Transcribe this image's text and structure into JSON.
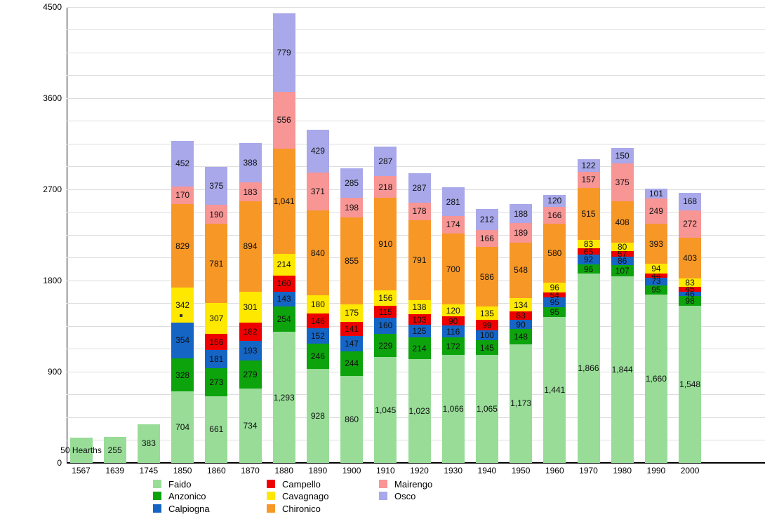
{
  "chart_data": {
    "type": "bar",
    "stacked": true,
    "title": "",
    "categories": [
      "1567",
      "1639",
      "1745",
      "1850",
      "1860",
      "1870",
      "1880",
      "1890",
      "1900",
      "1910",
      "1920",
      "1930",
      "1940",
      "1950",
      "1960",
      "1970",
      "1980",
      "1990",
      "2000"
    ],
    "series": [
      {
        "name": "Faido",
        "color": "#98DC98",
        "values": [
          250,
          255,
          383,
          704,
          661,
          734,
          1293,
          928,
          860,
          1045,
          1023,
          1066,
          1065,
          1173,
          1441,
          1866,
          1844,
          1660,
          1548
        ]
      },
      {
        "name": "Anzonico",
        "color": "#0CA30C",
        "values": [
          0,
          0,
          0,
          328,
          273,
          279,
          254,
          246,
          244,
          229,
          214,
          172,
          145,
          148,
          95,
          96,
          107,
          95,
          98
        ]
      },
      {
        "name": "Calpiogna",
        "color": "#1565C5",
        "values": [
          0,
          0,
          0,
          354,
          181,
          193,
          143,
          152,
          147,
          160,
          125,
          116,
          100,
          90,
          95,
          92,
          86,
          73,
          46
        ]
      },
      {
        "name": "Campello",
        "color": "#EE0000",
        "values": [
          0,
          0,
          0,
          0,
          156,
          182,
          160,
          146,
          141,
          115,
          103,
          90,
          99,
          83,
          54,
          65,
          57,
          44,
          45
        ]
      },
      {
        "name": "Cavagnago",
        "color": "#FFE800",
        "values": [
          0,
          0,
          0,
          342,
          307,
          301,
          214,
          180,
          175,
          156,
          138,
          120,
          135,
          134,
          96,
          83,
          80,
          94,
          83
        ]
      },
      {
        "name": "Chironico",
        "color": "#F79726",
        "values": [
          0,
          0,
          0,
          829,
          781,
          894,
          1041,
          840,
          855,
          910,
          791,
          700,
          586,
          548,
          580,
          515,
          408,
          393,
          403
        ]
      },
      {
        "name": "Mairengo",
        "color": "#F89595",
        "values": [
          0,
          0,
          0,
          170,
          190,
          183,
          556,
          371,
          198,
          218,
          178,
          174,
          166,
          189,
          166,
          157,
          375,
          249,
          272
        ]
      },
      {
        "name": "Osco",
        "color": "#A8A8EA",
        "values": [
          0,
          0,
          0,
          452,
          375,
          388,
          779,
          429,
          285,
          287,
          287,
          281,
          212,
          188,
          120,
          122,
          150,
          101,
          168
        ]
      }
    ],
    "label_overrides": [
      {
        "series": "Faido",
        "category": "1567",
        "label": "50 Hearths"
      }
    ],
    "special_markers": [
      {
        "category": "1850",
        "type": "dot",
        "stack_position": 1440,
        "description": "tiny dark square inside Cavagnago segment"
      }
    ],
    "y_axis": {
      "min": 0,
      "max": 4500,
      "major_ticks": [
        0,
        900,
        1800,
        2700,
        3600,
        4500
      ],
      "minor_gridline_step": 225
    },
    "grid": true,
    "legend_position": "bottom"
  },
  "legend": {
    "columns": [
      [
        "Faido",
        "Anzonico",
        "Calpiogna"
      ],
      [
        "Campello",
        "Cavagnago",
        "Chironico"
      ],
      [
        "Mairengo",
        "Osco"
      ]
    ]
  }
}
